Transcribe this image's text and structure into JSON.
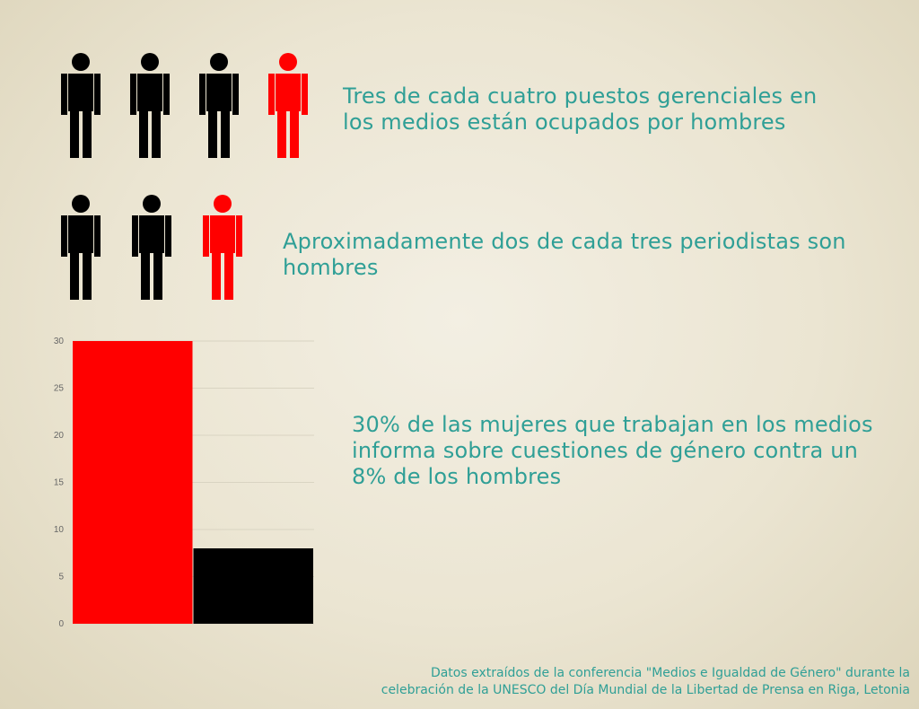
{
  "row1": {
    "figures": [
      {
        "color": "#000000"
      },
      {
        "color": "#000000"
      },
      {
        "color": "#000000"
      },
      {
        "color": "#ff0000"
      }
    ],
    "text": "Tres de cada cuatro puestos gerenciales en los medios están ocupados por hombres"
  },
  "row2": {
    "figures": [
      {
        "color": "#000000"
      },
      {
        "color": "#000000"
      },
      {
        "color": "#ff0000"
      }
    ],
    "text": "Aproximadamente dos de cada tres periodistas son hombres"
  },
  "stat3": {
    "text": "30% de las mujeres que trabajan en los medios informa sobre cuestiones de género contra un 8% de los hombres"
  },
  "chart_data": {
    "type": "bar",
    "categories": [
      "",
      ""
    ],
    "values": [
      30,
      8
    ],
    "colors": [
      "#ff0000",
      "#000000"
    ],
    "ylim": [
      0,
      30
    ],
    "yticks": [
      "0",
      "5",
      "10",
      "15",
      "20",
      "25",
      "30"
    ],
    "grid": true,
    "title": "",
    "xlabel": "",
    "ylabel": ""
  },
  "footer": {
    "line1": "Datos extraídos de la conferencia \"Medios e Igualdad de Género\" durante la",
    "line2": "celebración de la UNESCO del Día Mundial de la Libertad de Prensa en Riga, Letonia"
  },
  "colors": {
    "text_accent": "#2f9f96",
    "male": "#000000",
    "female": "#ff0000"
  }
}
